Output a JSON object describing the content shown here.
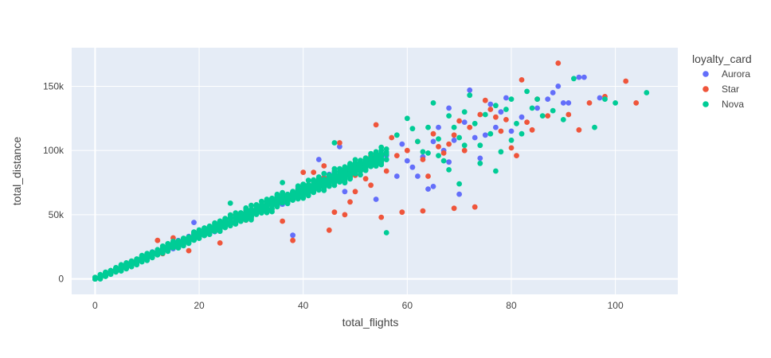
{
  "chart_data": {
    "type": "scatter",
    "xlabel": "total_flights",
    "ylabel": "total_distance",
    "xlim": [
      -4.5,
      112
    ],
    "ylim": [
      -12000,
      180000
    ],
    "x_ticks": [
      0,
      20,
      40,
      60,
      80,
      100
    ],
    "x_tick_labels": [
      "0",
      "20",
      "40",
      "60",
      "80",
      "100"
    ],
    "y_ticks": [
      0,
      50000,
      100000,
      150000
    ],
    "y_tick_labels": [
      "0",
      "50k",
      "100k",
      "150k"
    ],
    "grid": true,
    "legend": {
      "title": "loyalty_card",
      "position": "right"
    },
    "series": [
      {
        "name": "Aurora",
        "color": "#636efa",
        "band": {
          "x_min": 0,
          "x_max": 55,
          "slope": 1720,
          "spread": 5000,
          "count": 140
        },
        "points": [
          [
            19,
            44000
          ],
          [
            38,
            34000
          ],
          [
            43,
            93000
          ],
          [
            47,
            103000
          ],
          [
            48,
            68000
          ],
          [
            52,
            89000
          ],
          [
            54,
            62000
          ],
          [
            56,
            96000
          ],
          [
            58,
            80000
          ],
          [
            59,
            105000
          ],
          [
            60,
            92000
          ],
          [
            61,
            87000
          ],
          [
            62,
            80000
          ],
          [
            63,
            95000
          ],
          [
            64,
            70000
          ],
          [
            65,
            72000
          ],
          [
            65,
            107000
          ],
          [
            66,
            118000
          ],
          [
            67,
            100000
          ],
          [
            68,
            133000
          ],
          [
            68,
            91000
          ],
          [
            69,
            108000
          ],
          [
            70,
            66000
          ],
          [
            71,
            122000
          ],
          [
            72,
            147000
          ],
          [
            73,
            110000
          ],
          [
            74,
            94000
          ],
          [
            75,
            112000
          ],
          [
            76,
            136000
          ],
          [
            77,
            118000
          ],
          [
            78,
            130000
          ],
          [
            79,
            141000
          ],
          [
            80,
            115000
          ],
          [
            82,
            126000
          ],
          [
            85,
            133000
          ],
          [
            87,
            140000
          ],
          [
            88,
            145000
          ],
          [
            89,
            150000
          ],
          [
            90,
            137000
          ],
          [
            91,
            137000
          ],
          [
            93,
            157000
          ],
          [
            94,
            157000
          ],
          [
            97,
            141000
          ]
        ]
      },
      {
        "name": "Star",
        "color": "#ef553b",
        "band": {
          "x_min": 0,
          "x_max": 55,
          "slope": 1720,
          "spread": 5000,
          "count": 140
        },
        "points": [
          [
            12,
            30000
          ],
          [
            15,
            32000
          ],
          [
            18,
            22000
          ],
          [
            24,
            28000
          ],
          [
            33,
            58000
          ],
          [
            35,
            62000
          ],
          [
            38,
            30000
          ],
          [
            40,
            83000
          ],
          [
            42,
            83000
          ],
          [
            44,
            88000
          ],
          [
            45,
            38000
          ],
          [
            46,
            52000
          ],
          [
            47,
            106000
          ],
          [
            48,
            50000
          ],
          [
            49,
            60000
          ],
          [
            50,
            68000
          ],
          [
            52,
            78000
          ],
          [
            53,
            73000
          ],
          [
            54,
            120000
          ],
          [
            55,
            48000
          ],
          [
            56,
            84000
          ],
          [
            57,
            110000
          ],
          [
            58,
            96000
          ],
          [
            60,
            100000
          ],
          [
            62,
            107000
          ],
          [
            63,
            93000
          ],
          [
            64,
            80000
          ],
          [
            65,
            113000
          ],
          [
            66,
            103000
          ],
          [
            67,
            98000
          ],
          [
            68,
            105000
          ],
          [
            69,
            112000
          ],
          [
            70,
            123000
          ],
          [
            71,
            100000
          ],
          [
            72,
            118000
          ],
          [
            74,
            128000
          ],
          [
            75,
            139000
          ],
          [
            76,
            132000
          ],
          [
            77,
            126000
          ],
          [
            78,
            115000
          ],
          [
            79,
            124000
          ],
          [
            80,
            102000
          ],
          [
            81,
            96000
          ],
          [
            82,
            155000
          ],
          [
            83,
            122000
          ],
          [
            84,
            116000
          ],
          [
            85,
            140000
          ],
          [
            87,
            127000
          ],
          [
            89,
            168000
          ],
          [
            91,
            128000
          ],
          [
            93,
            116000
          ],
          [
            95,
            137000
          ],
          [
            98,
            142000
          ],
          [
            102,
            154000
          ],
          [
            104,
            137000
          ],
          [
            69,
            55000
          ],
          [
            73,
            56000
          ],
          [
            63,
            53000
          ],
          [
            59,
            52000
          ],
          [
            36,
            45000
          ]
        ]
      },
      {
        "name": "Nova",
        "color": "#00cc96",
        "band": {
          "x_min": 0,
          "x_max": 56,
          "slope": 1720,
          "spread": 6500,
          "count": 1400
        },
        "points": [
          [
            26,
            59000
          ],
          [
            36,
            75000
          ],
          [
            46,
            106000
          ],
          [
            56,
            36000
          ],
          [
            58,
            112000
          ],
          [
            60,
            125000
          ],
          [
            61,
            117000
          ],
          [
            62,
            107000
          ],
          [
            63,
            99000
          ],
          [
            64,
            118000
          ],
          [
            65,
            137000
          ],
          [
            66,
            109000
          ],
          [
            67,
            92000
          ],
          [
            68,
            127000
          ],
          [
            69,
            118000
          ],
          [
            70,
            110000
          ],
          [
            71,
            130000
          ],
          [
            72,
            143000
          ],
          [
            73,
            121000
          ],
          [
            74,
            104000
          ],
          [
            75,
            128000
          ],
          [
            76,
            113000
          ],
          [
            77,
            135000
          ],
          [
            78,
            99000
          ],
          [
            79,
            132000
          ],
          [
            80,
            140000
          ],
          [
            81,
            121000
          ],
          [
            82,
            113000
          ],
          [
            83,
            146000
          ],
          [
            84,
            133000
          ],
          [
            85,
            140000
          ],
          [
            86,
            127000
          ],
          [
            88,
            131000
          ],
          [
            90,
            124000
          ],
          [
            92,
            156000
          ],
          [
            96,
            118000
          ],
          [
            98,
            140000
          ],
          [
            100,
            137000
          ],
          [
            106,
            145000
          ],
          [
            80,
            108000
          ],
          [
            77,
            84000
          ],
          [
            74,
            90000
          ],
          [
            66,
            96000
          ],
          [
            71,
            104000
          ],
          [
            68,
            85000
          ],
          [
            64,
            98000
          ],
          [
            70,
            74000
          ]
        ]
      }
    ]
  }
}
